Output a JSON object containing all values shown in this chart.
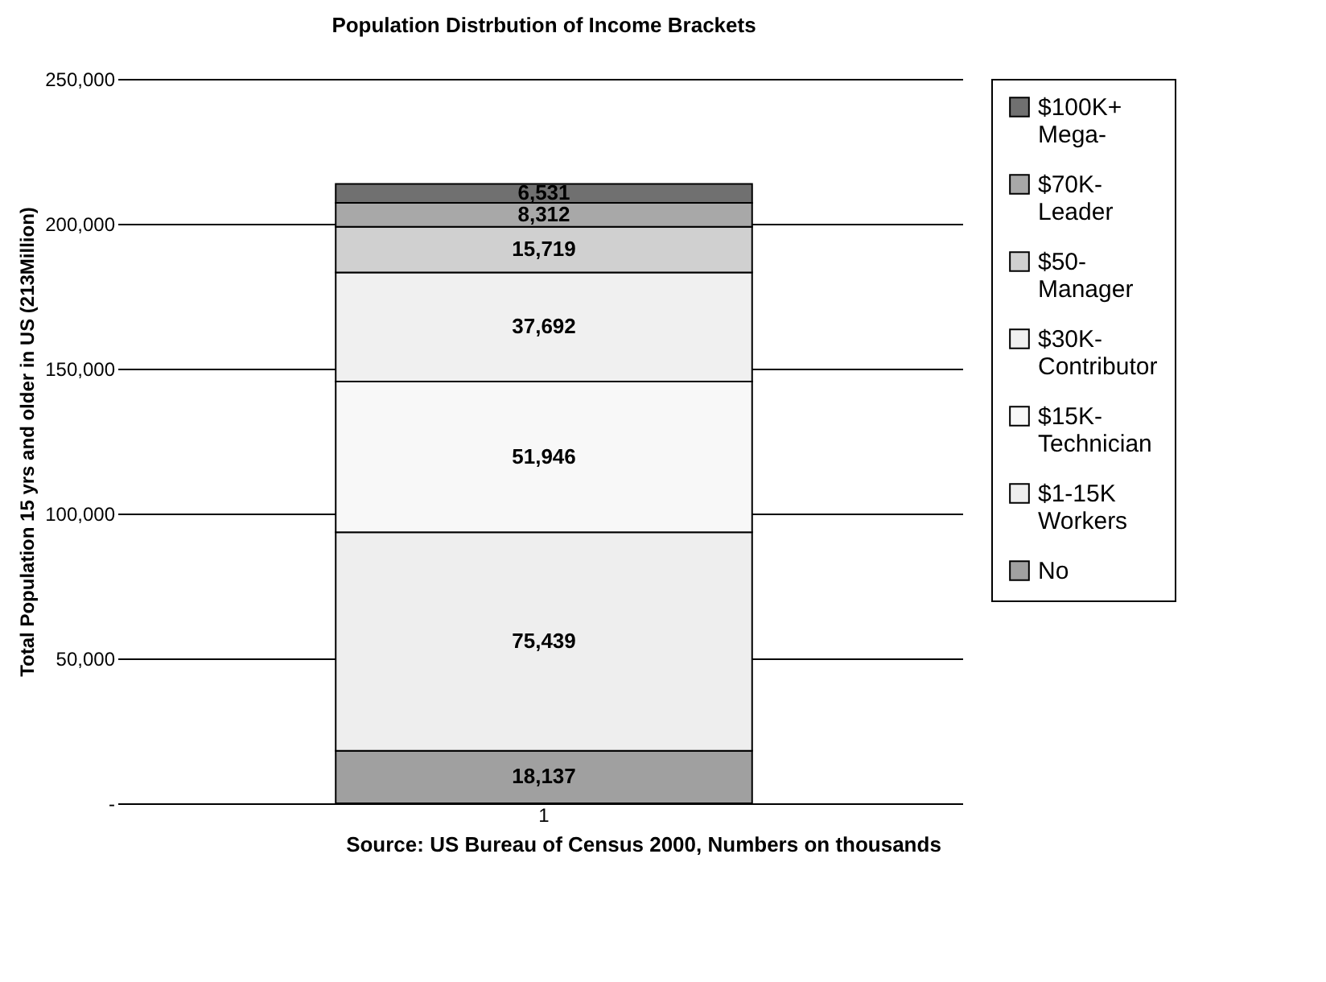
{
  "chart_data": {
    "type": "bar",
    "stacked": true,
    "title": "Population Distrbution of Income Brackets",
    "ylabel": "Total Population 15 yrs and older in US (213Million)",
    "categories": [
      "1"
    ],
    "series": [
      {
        "name": "No",
        "color": "#a0a0a0",
        "values": [
          18137
        ],
        "value_labels": [
          "18,137"
        ]
      },
      {
        "name": "$1-15K Workers",
        "color": "#eeeeee",
        "values": [
          75439
        ],
        "value_labels": [
          "75,439"
        ]
      },
      {
        "name": "$15K- Technician",
        "color": "#f8f8f8",
        "values": [
          51946
        ],
        "value_labels": [
          "51,946"
        ]
      },
      {
        "name": "$30K- Contributor",
        "color": "#f0f0f0",
        "values": [
          37692
        ],
        "value_labels": [
          "37,692"
        ]
      },
      {
        "name": "$50- Manager",
        "color": "#d0d0d0",
        "values": [
          15719
        ],
        "value_labels": [
          "15,719"
        ]
      },
      {
        "name": "$70K- Leader",
        "color": "#a8a8a8",
        "values": [
          8312
        ],
        "value_labels": [
          "8,312"
        ]
      },
      {
        "name": "$100K+ Mega-",
        "color": "#707070",
        "values": [
          6531
        ],
        "value_labels": [
          "6,531"
        ]
      }
    ],
    "ylim": [
      0,
      250000
    ],
    "yticks": [
      {
        "value": 0,
        "label": "-"
      },
      {
        "value": 50000,
        "label": "50,000"
      },
      {
        "value": 100000,
        "label": "100,000"
      },
      {
        "value": 150000,
        "label": "150,000"
      },
      {
        "value": 200000,
        "label": "200,000"
      },
      {
        "value": 250000,
        "label": "250,000"
      }
    ],
    "grid": "y",
    "legend": "right",
    "annotations": [
      "Source: US Bureau of Census 2000, Numbers on thousands"
    ]
  }
}
